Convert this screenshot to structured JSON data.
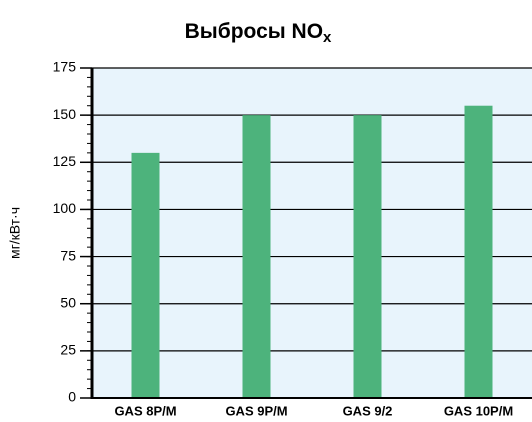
{
  "chart_data": {
    "type": "bar",
    "title": {
      "text": "Выбросы NO",
      "subscript": "x"
    },
    "ylabel": "мг/кВт·ч",
    "categories": [
      "GAS 8P/M",
      "GAS 9P/M",
      "GAS 9/2",
      "GAS 10P/M"
    ],
    "values": [
      130,
      150,
      150,
      155
    ],
    "color": "#4db37c",
    "ylim": [
      0,
      175
    ],
    "yticks": [
      0,
      25,
      50,
      75,
      100,
      125,
      150,
      175
    ],
    "yminor_step": 5,
    "grid": true
  }
}
